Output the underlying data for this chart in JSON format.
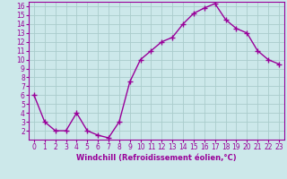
{
  "x": [
    0,
    1,
    2,
    3,
    4,
    5,
    6,
    7,
    8,
    9,
    10,
    11,
    12,
    13,
    14,
    15,
    16,
    17,
    18,
    19,
    20,
    21,
    22,
    23
  ],
  "y": [
    6,
    3,
    2,
    2,
    4,
    2,
    1.5,
    1.2,
    3,
    7.5,
    10,
    11,
    12,
    12.5,
    14,
    15.2,
    15.8,
    16.3,
    14.5,
    13.5,
    13,
    11,
    10,
    9.5
  ],
  "line_color": "#990099",
  "marker": "+",
  "marker_size": 4,
  "background_color": "#cce8ea",
  "grid_color": "#aacccc",
  "xlabel": "Windchill (Refroidissement éolien,°C)",
  "xlim": [
    -0.5,
    23.5
  ],
  "ylim": [
    1.0,
    16.5
  ],
  "yticks": [
    2,
    3,
    4,
    5,
    6,
    7,
    8,
    9,
    10,
    11,
    12,
    13,
    14,
    15,
    16
  ],
  "xticks": [
    0,
    1,
    2,
    3,
    4,
    5,
    6,
    7,
    8,
    9,
    10,
    11,
    12,
    13,
    14,
    15,
    16,
    17,
    18,
    19,
    20,
    21,
    22,
    23
  ],
  "tick_color": "#990099",
  "label_color": "#990099",
  "spine_color": "#990099",
  "tick_labelsize": 5.5,
  "xlabel_fontsize": 6.0,
  "linewidth": 1.0,
  "markeredgewidth": 1.0
}
